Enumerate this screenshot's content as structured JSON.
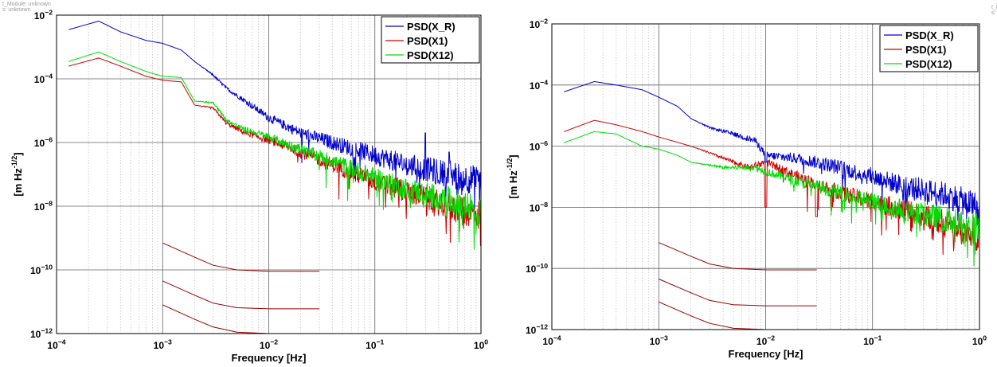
{
  "charts": [
    {
      "header_lines": [
        "t_Module: unknown",
        "s: unknown"
      ],
      "chart_data": {
        "type": "line",
        "title": "",
        "xlabel": "Frequency  [Hz]",
        "ylabel": "[m Hz^-1/2]",
        "xscale": "log",
        "yscale": "log",
        "xlim": [
          0.0001,
          1
        ],
        "ylim": [
          1e-12,
          0.01
        ],
        "x_ticks": [
          0.0001,
          0.001,
          0.01,
          0.1,
          1
        ],
        "y_ticks": [
          1e-12,
          1e-10,
          1e-08,
          1e-06,
          0.0001,
          0.01
        ],
        "grid": true,
        "legend_position": "top-right",
        "series": [
          {
            "name": "PSD(X_R)",
            "color": "#0000cc",
            "points": [
              [
                0.00013,
                0.0035
              ],
              [
                0.00025,
                0.0065
              ],
              [
                0.0004,
                0.003
              ],
              [
                0.0007,
                0.0016
              ],
              [
                0.001,
                0.0013
              ],
              [
                0.0015,
                0.0008
              ],
              [
                0.002,
                0.00035
              ],
              [
                0.003,
                0.00013
              ],
              [
                0.004,
                5e-05
              ],
              [
                0.006,
                2e-05
              ],
              [
                0.01,
                6e-06
              ],
              [
                0.02,
                2e-06
              ],
              [
                0.05,
                8e-07
              ],
              [
                0.1,
                4e-07
              ],
              [
                0.2,
                2e-07
              ],
              [
                0.5,
                1e-07
              ],
              [
                1,
                6e-08
              ]
            ],
            "spikes": [
              [
                0.3,
                2e-06
              ],
              [
                0.5,
                5e-07
              ]
            ]
          },
          {
            "name": "PSD(X1)",
            "color": "#cc0000",
            "points": [
              [
                0.00013,
                0.00025
              ],
              [
                0.00025,
                0.00045
              ],
              [
                0.0004,
                0.00025
              ],
              [
                0.0007,
                0.00012
              ],
              [
                0.001,
                9e-05
              ],
              [
                0.0015,
                8e-05
              ],
              [
                0.002,
                1.5e-05
              ],
              [
                0.003,
                1.2e-05
              ],
              [
                0.004,
                4e-06
              ],
              [
                0.006,
                2e-06
              ],
              [
                0.01,
                1.2e-06
              ],
              [
                0.02,
                5e-07
              ],
              [
                0.05,
                1.5e-07
              ],
              [
                0.1,
                6e-08
              ],
              [
                0.2,
                3e-08
              ],
              [
                0.5,
                1e-08
              ],
              [
                1,
                5e-09
              ]
            ]
          },
          {
            "name": "PSD(X12)",
            "color": "#00dd00",
            "points": [
              [
                0.00013,
                0.00035
              ],
              [
                0.00025,
                0.0007
              ],
              [
                0.0004,
                0.00035
              ],
              [
                0.0007,
                0.00017
              ],
              [
                0.001,
                0.00012
              ],
              [
                0.0015,
                0.00011
              ],
              [
                0.002,
                2e-05
              ],
              [
                0.003,
                1.8e-05
              ],
              [
                0.004,
                5e-06
              ],
              [
                0.006,
                2.5e-06
              ],
              [
                0.01,
                1.5e-06
              ],
              [
                0.02,
                6e-07
              ],
              [
                0.05,
                2e-07
              ],
              [
                0.1,
                8e-08
              ],
              [
                0.2,
                3.5e-08
              ],
              [
                0.5,
                1.5e-08
              ],
              [
                1,
                7e-09
              ]
            ]
          }
        ],
        "reference_curves": [
          {
            "color": "#990000",
            "points": [
              [
                0.001,
                7e-10
              ],
              [
                0.002,
                2.5e-10
              ],
              [
                0.003,
                1.4e-10
              ],
              [
                0.005,
                1e-10
              ],
              [
                0.01,
                9e-11
              ],
              [
                0.03,
                9e-11
              ]
            ]
          },
          {
            "color": "#990000",
            "points": [
              [
                0.001,
                4.5e-11
              ],
              [
                0.002,
                1.6e-11
              ],
              [
                0.003,
                9e-12
              ],
              [
                0.005,
                6.5e-12
              ],
              [
                0.01,
                6e-12
              ],
              [
                0.03,
                6e-12
              ]
            ]
          },
          {
            "color": "#990000",
            "points": [
              [
                0.001,
                8e-12
              ],
              [
                0.002,
                2.8e-12
              ],
              [
                0.003,
                1.6e-12
              ],
              [
                0.005,
                1.1e-12
              ],
              [
                0.01,
                1e-12
              ],
              [
                0.03,
                1e-12
              ]
            ]
          }
        ]
      }
    },
    {
      "header_lines": [
        "t_Module: unknown",
        "s: unknown"
      ],
      "chart_data": {
        "type": "line",
        "title": "",
        "xlabel": "Frequency  [Hz]",
        "ylabel": "[m Hz^-1/2]",
        "xscale": "log",
        "yscale": "log",
        "xlim": [
          0.0001,
          1
        ],
        "ylim": [
          1e-12,
          0.01
        ],
        "x_ticks": [
          0.0001,
          0.001,
          0.01,
          0.1,
          1
        ],
        "y_ticks": [
          1e-12,
          1e-10,
          1e-08,
          1e-06,
          0.0001,
          0.01
        ],
        "grid": true,
        "legend_position": "top-right",
        "series": [
          {
            "name": "PSD(X_R)",
            "color": "#0000cc",
            "points": [
              [
                0.00013,
                6e-05
              ],
              [
                0.00025,
                0.00013
              ],
              [
                0.0004,
                0.0001
              ],
              [
                0.0007,
                7e-05
              ],
              [
                0.001,
                4e-05
              ],
              [
                0.0015,
                2e-05
              ],
              [
                0.002,
                8e-06
              ],
              [
                0.003,
                4e-06
              ],
              [
                0.005,
                2.5e-06
              ],
              [
                0.008,
                1.5e-06
              ],
              [
                0.01,
                5e-07
              ],
              [
                0.02,
                4e-07
              ],
              [
                0.05,
                2e-07
              ],
              [
                0.1,
                1e-07
              ],
              [
                0.2,
                5e-08
              ],
              [
                0.5,
                2.5e-08
              ],
              [
                1,
                1e-08
              ]
            ],
            "dips": [
              [
                0.01,
                3e-07
              ]
            ]
          },
          {
            "name": "PSD(X1)",
            "color": "#cc0000",
            "points": [
              [
                0.00013,
                3e-06
              ],
              [
                0.00025,
                7e-06
              ],
              [
                0.0004,
                5e-06
              ],
              [
                0.0007,
                3e-06
              ],
              [
                0.001,
                2e-06
              ],
              [
                0.002,
                1e-06
              ],
              [
                0.003,
                6e-07
              ],
              [
                0.005,
                3e-07
              ],
              [
                0.007,
                2e-07
              ],
              [
                0.01,
                3e-07
              ],
              [
                0.02,
                1e-07
              ],
              [
                0.05,
                3e-08
              ],
              [
                0.1,
                1.5e-08
              ],
              [
                0.2,
                8e-09
              ],
              [
                0.5,
                3e-09
              ],
              [
                1,
                1e-09
              ]
            ],
            "dips": [
              [
                0.01,
                1e-08
              ],
              [
                0.03,
                5e-09
              ]
            ]
          },
          {
            "name": "PSD(X12)",
            "color": "#00dd00",
            "points": [
              [
                0.00013,
                1.3e-06
              ],
              [
                0.00025,
                3e-06
              ],
              [
                0.0004,
                2.5e-06
              ],
              [
                0.0007,
                1e-06
              ],
              [
                0.001,
                8e-07
              ],
              [
                0.0015,
                5e-07
              ],
              [
                0.002,
                3e-07
              ],
              [
                0.004,
                2e-07
              ],
              [
                0.008,
                2e-07
              ],
              [
                0.01,
                1.5e-07
              ],
              [
                0.02,
                7e-08
              ],
              [
                0.05,
                3e-08
              ],
              [
                0.1,
                1.5e-08
              ],
              [
                0.2,
                8e-09
              ],
              [
                0.5,
                4e-09
              ],
              [
                1,
                2e-09
              ]
            ]
          }
        ],
        "reference_curves": [
          {
            "color": "#990000",
            "points": [
              [
                0.001,
                7e-10
              ],
              [
                0.002,
                2.5e-10
              ],
              [
                0.003,
                1.4e-10
              ],
              [
                0.005,
                1e-10
              ],
              [
                0.01,
                9e-11
              ],
              [
                0.03,
                9e-11
              ]
            ]
          },
          {
            "color": "#990000",
            "points": [
              [
                0.001,
                4.5e-11
              ],
              [
                0.002,
                1.6e-11
              ],
              [
                0.003,
                9e-12
              ],
              [
                0.005,
                6.5e-12
              ],
              [
                0.01,
                6e-12
              ],
              [
                0.03,
                6e-12
              ]
            ]
          },
          {
            "color": "#990000",
            "points": [
              [
                0.001,
                8e-12
              ],
              [
                0.002,
                2.8e-12
              ],
              [
                0.003,
                1.6e-12
              ],
              [
                0.005,
                1.1e-12
              ],
              [
                0.01,
                1e-12
              ],
              [
                0.03,
                1e-12
              ]
            ]
          }
        ]
      }
    }
  ]
}
